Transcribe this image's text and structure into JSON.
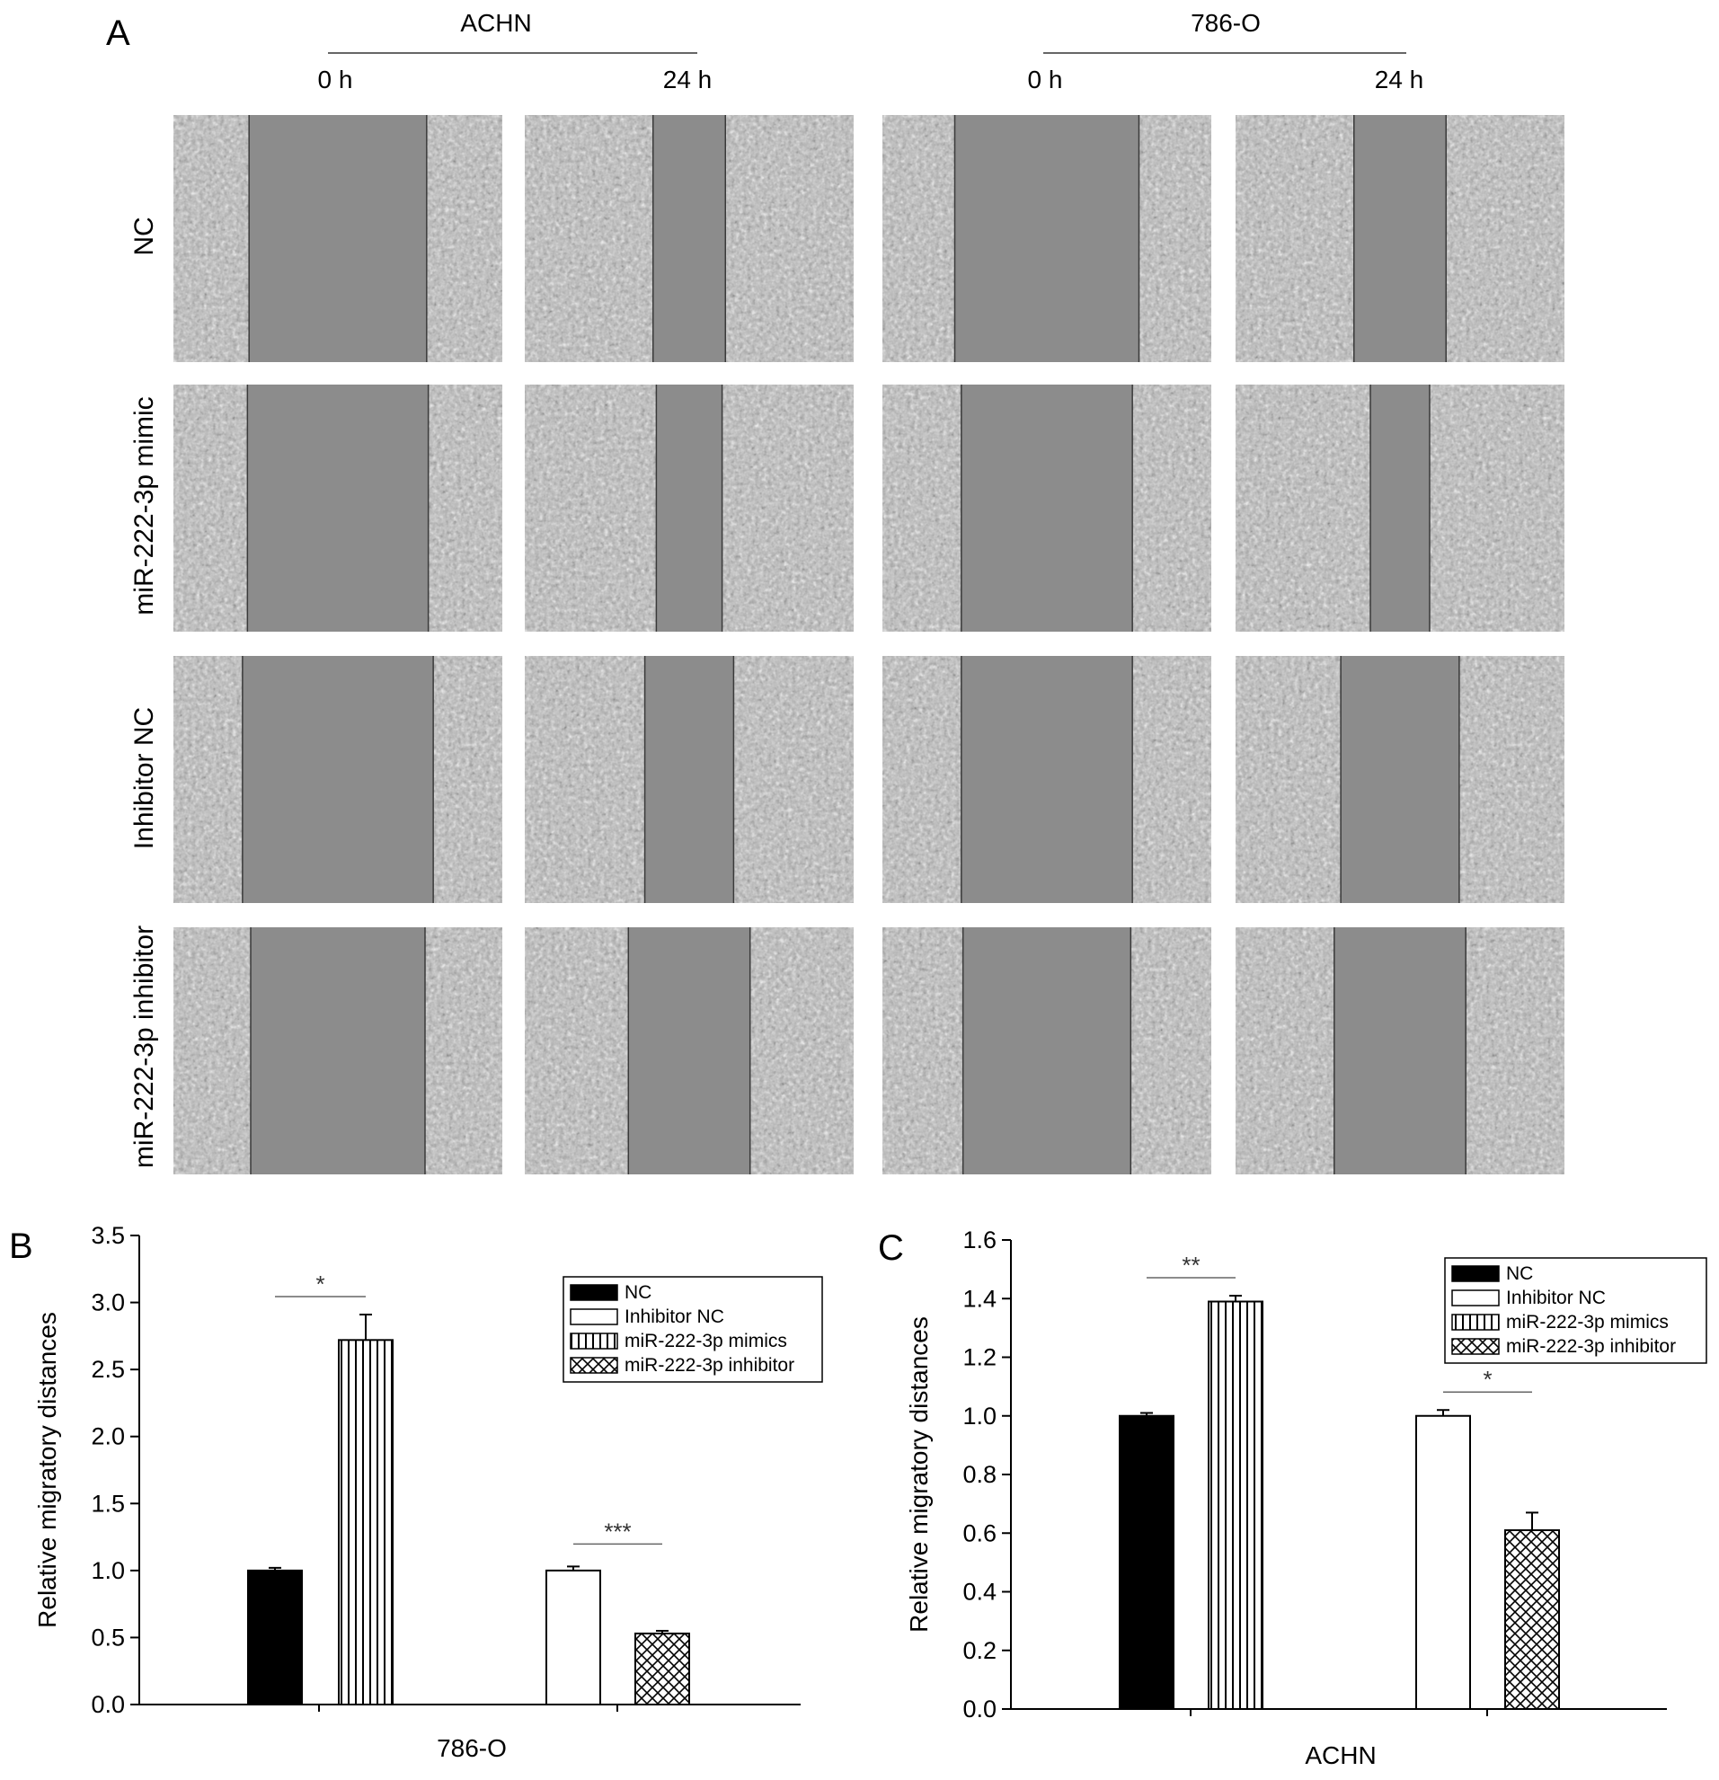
{
  "panel_a": {
    "letter": "A",
    "cell_lines": [
      {
        "name": "ACHN",
        "times": [
          "0 h",
          "24 h"
        ]
      },
      {
        "name": "786-O",
        "times": [
          "0 h",
          "24 h"
        ]
      }
    ],
    "row_labels": [
      "NC",
      "miR-222-3p mimic",
      "Inhibitor NC",
      "miR-222-3p inhibitor"
    ],
    "micrographs": [
      [
        0.54,
        0.22,
        0.56,
        0.28
      ],
      [
        0.55,
        0.2,
        0.52,
        0.18
      ],
      [
        0.58,
        0.27,
        0.52,
        0.36
      ],
      [
        0.53,
        0.37,
        0.51,
        0.4
      ]
    ]
  },
  "chart_data": [
    {
      "type": "bar",
      "panel": "B",
      "xlabel": "786-O",
      "ylabel": "Relative migratory distances",
      "ylim": [
        0,
        3.5
      ],
      "yticks": [
        "0.0",
        "0.5",
        "1.0",
        "1.5",
        "2.0",
        "2.5",
        "3.0",
        "3.5"
      ],
      "bars": [
        {
          "series": "NC",
          "value": 1.0,
          "error": 0.02
        },
        {
          "series": "miR-222-3p mimics",
          "value": 2.72,
          "error": 0.19
        },
        {
          "series": "Inhibitor NC",
          "value": 1.0,
          "error": 0.03
        },
        {
          "series": "miR-222-3p inhibitor",
          "value": 0.53,
          "error": 0.02
        }
      ],
      "significance": [
        {
          "label": "*",
          "between": [
            0,
            1
          ]
        },
        {
          "label": "***",
          "between": [
            2,
            3
          ]
        }
      ],
      "legend": {
        "position": "top-right",
        "entries": [
          {
            "name": "NC",
            "pattern": "solid"
          },
          {
            "name": "Inhibitor NC",
            "pattern": "open"
          },
          {
            "name": "miR-222-3p mimics",
            "pattern": "vertical-lines"
          },
          {
            "name": "miR-222-3p inhibitor",
            "pattern": "crosshatch"
          }
        ]
      },
      "grid": false
    },
    {
      "type": "bar",
      "panel": "C",
      "xlabel": "ACHN",
      "ylabel": "Relative migratory distances",
      "ylim": [
        0,
        1.6
      ],
      "yticks": [
        "0.0",
        "0.2",
        "0.4",
        "0.6",
        "0.8",
        "1.0",
        "1.2",
        "1.4",
        "1.6"
      ],
      "bars": [
        {
          "series": "NC",
          "value": 1.0,
          "error": 0.01
        },
        {
          "series": "miR-222-3p mimics",
          "value": 1.39,
          "error": 0.02
        },
        {
          "series": "Inhibitor NC",
          "value": 1.0,
          "error": 0.02
        },
        {
          "series": "miR-222-3p inhibitor",
          "value": 0.61,
          "error": 0.06
        }
      ],
      "significance": [
        {
          "label": "**",
          "between": [
            0,
            1
          ]
        },
        {
          "label": "*",
          "between": [
            2,
            3
          ]
        }
      ],
      "legend": {
        "position": "top-right",
        "entries": [
          {
            "name": "NC",
            "pattern": "solid"
          },
          {
            "name": "Inhibitor NC",
            "pattern": "open"
          },
          {
            "name": "miR-222-3p mimics",
            "pattern": "vertical-lines"
          },
          {
            "name": "miR-222-3p inhibitor",
            "pattern": "crosshatch"
          }
        ]
      },
      "grid": false
    }
  ]
}
